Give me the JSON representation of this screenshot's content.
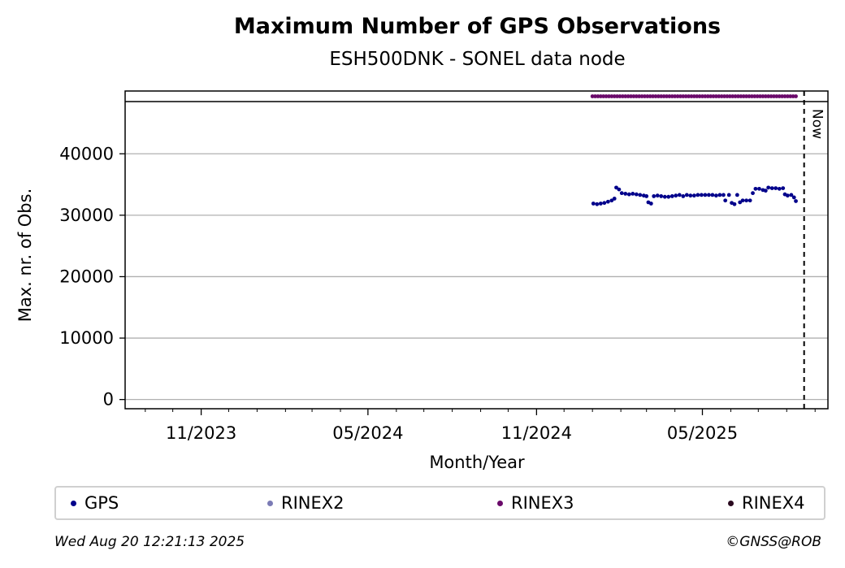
{
  "chart_data": {
    "type": "scatter",
    "title": "Maximum Number of GPS Observations",
    "subtitle": "ESH500DNK - SONEL data node",
    "xlabel": "Month/Year",
    "ylabel": "Max. nr. of Obs.",
    "x_tick_labels": [
      "11/2023",
      "05/2024",
      "11/2024",
      "05/2025"
    ],
    "y_ticks": [
      0,
      10000,
      20000,
      30000,
      40000
    ],
    "ylim": [
      -1500,
      48500
    ],
    "xlim": [
      "2023-08-10",
      "2025-09-15"
    ],
    "grid": "y",
    "now_label": "Now",
    "now_date": "2025-08-20",
    "legend_placement": "bottom",
    "legend": [
      {
        "name": "GPS",
        "color": "#00008b"
      },
      {
        "name": "RINEX2",
        "color": "#7b7bb5"
      },
      {
        "name": "RINEX3",
        "color": "#6a0a6a"
      },
      {
        "name": "RINEX4",
        "color": "#2a0a1f"
      }
    ],
    "series": [
      {
        "name": "GPS",
        "color": "#00008b",
        "points": [
          [
            "2025-01-02",
            31900
          ],
          [
            "2025-01-06",
            31800
          ],
          [
            "2025-01-10",
            31900
          ],
          [
            "2025-01-14",
            32000
          ],
          [
            "2025-01-18",
            32200
          ],
          [
            "2025-01-22",
            32400
          ],
          [
            "2025-01-25",
            32700
          ],
          [
            "2025-01-27",
            34500
          ],
          [
            "2025-01-30",
            34200
          ],
          [
            "2025-02-02",
            33600
          ],
          [
            "2025-02-06",
            33500
          ],
          [
            "2025-02-10",
            33400
          ],
          [
            "2025-02-14",
            33500
          ],
          [
            "2025-02-18",
            33400
          ],
          [
            "2025-02-22",
            33300
          ],
          [
            "2025-02-26",
            33200
          ],
          [
            "2025-03-01",
            33100
          ],
          [
            "2025-03-03",
            32100
          ],
          [
            "2025-03-06",
            31900
          ],
          [
            "2025-03-09",
            33100
          ],
          [
            "2025-03-13",
            33200
          ],
          [
            "2025-03-17",
            33100
          ],
          [
            "2025-03-21",
            33000
          ],
          [
            "2025-03-25",
            33000
          ],
          [
            "2025-03-29",
            33100
          ],
          [
            "2025-04-02",
            33200
          ],
          [
            "2025-04-06",
            33300
          ],
          [
            "2025-04-10",
            33100
          ],
          [
            "2025-04-14",
            33300
          ],
          [
            "2025-04-18",
            33200
          ],
          [
            "2025-04-22",
            33200
          ],
          [
            "2025-04-26",
            33300
          ],
          [
            "2025-04-30",
            33300
          ],
          [
            "2025-05-04",
            33300
          ],
          [
            "2025-05-08",
            33300
          ],
          [
            "2025-05-12",
            33300
          ],
          [
            "2025-05-16",
            33200
          ],
          [
            "2025-05-20",
            33300
          ],
          [
            "2025-05-24",
            33300
          ],
          [
            "2025-05-26",
            32400
          ],
          [
            "2025-05-30",
            33300
          ],
          [
            "2025-06-02",
            32000
          ],
          [
            "2025-06-05",
            31800
          ],
          [
            "2025-06-08",
            33300
          ],
          [
            "2025-06-11",
            32100
          ],
          [
            "2025-06-14",
            32400
          ],
          [
            "2025-06-18",
            32400
          ],
          [
            "2025-06-22",
            32400
          ],
          [
            "2025-06-25",
            33600
          ],
          [
            "2025-06-28",
            34300
          ],
          [
            "2025-07-02",
            34300
          ],
          [
            "2025-07-06",
            34100
          ],
          [
            "2025-07-09",
            34000
          ],
          [
            "2025-07-12",
            34500
          ],
          [
            "2025-07-16",
            34400
          ],
          [
            "2025-07-20",
            34400
          ],
          [
            "2025-07-24",
            34300
          ],
          [
            "2025-07-28",
            34400
          ],
          [
            "2025-07-30",
            33400
          ],
          [
            "2025-08-02",
            33200
          ],
          [
            "2025-08-06",
            33300
          ],
          [
            "2025-08-09",
            32900
          ],
          [
            "2025-08-11",
            32300
          ]
        ]
      },
      {
        "name": "RINEX3",
        "color": "#6a0a6a",
        "placement": "availability strip above plot",
        "start": "2025-01-01",
        "end": "2025-08-11"
      }
    ]
  },
  "footer": {
    "timestamp": "Wed Aug 20 12:21:13 2025",
    "credit": "©GNSS@ROB"
  }
}
